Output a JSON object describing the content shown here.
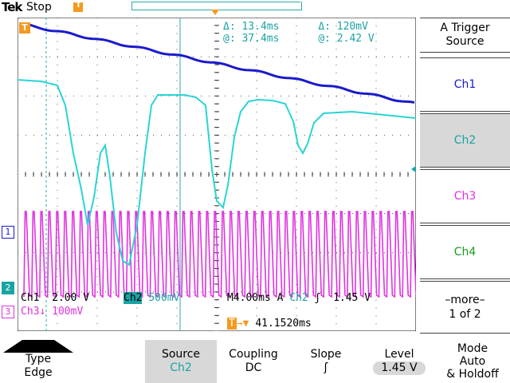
{
  "header": {
    "brand": "Tek",
    "status": "Stop",
    "trigger_flag": "T"
  },
  "measurements": {
    "delta_time": "13.4ms",
    "delta_volt": "120mV",
    "at_time": "37.4ms",
    "at_volt": "2.42 V",
    "delta_symbol": "Δ:",
    "at_symbol": "@:"
  },
  "channel_markers": {
    "ch1": "1",
    "ch2": "2",
    "ch3": "3"
  },
  "scale_readout": {
    "ch1": "Ch1",
    "ch1_scale": "2.00 V",
    "ch2": "Ch2",
    "ch2_scale": "500mV",
    "timebase": "M4.00ms",
    "trig_label": "A",
    "trig_channel": "Ch2",
    "trig_level": "1.45 V",
    "ch3": "Ch3",
    "ch3_scale": "100mV",
    "trig_time": "41.1520ms"
  },
  "right_menu": {
    "title": "A Trigger Source",
    "items": [
      "Ch1",
      "Ch2",
      "Ch3",
      "Ch4"
    ],
    "selected": "Ch2",
    "more_label": "–more–",
    "more_page": "1 of 2"
  },
  "bottom_menu": {
    "type_label": "Type",
    "type_value": "Edge",
    "source_label": "Source",
    "source_value": "Ch2",
    "coupling_label": "Coupling",
    "coupling_value": "DC",
    "slope_label": "Slope",
    "level_label": "Level",
    "level_value": "1.45 V",
    "mode_label": "Mode",
    "mode_value": "Auto",
    "holdoff_label": "& Holdoff"
  },
  "colors": {
    "ch1": "#1a1acc",
    "ch2": "#2ad4d4",
    "ch3": "#e033e0",
    "ch4": "#1a9a1a",
    "accent": "#f39a1f"
  }
}
